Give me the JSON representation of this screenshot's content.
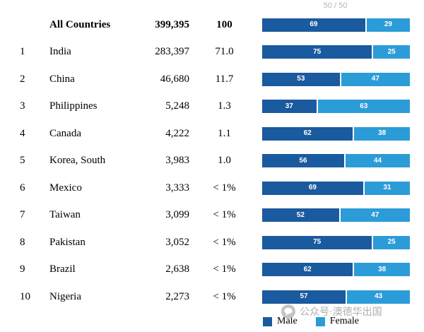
{
  "header_note": "50 / 50",
  "colors": {
    "male": "#1A5A9E",
    "female": "#2B9CD8"
  },
  "legend": [
    {
      "label": "Male",
      "color": "#1A5A9E"
    },
    {
      "label": "Female",
      "color": "#2B9CD8"
    }
  ],
  "watermark": "公众号·澳德华出国",
  "chart_data": {
    "type": "bar",
    "subtype": "horizontal-stacked-100",
    "axis_note": "50 / 50",
    "legend": [
      "Male",
      "Female"
    ],
    "columns": [
      "rank",
      "country",
      "count",
      "percent_of_total",
      "male_pct",
      "female_pct"
    ],
    "rows": [
      {
        "rank": "",
        "country": "All Countries",
        "count": "399,395",
        "percent": "100",
        "male": 69,
        "female": 29,
        "bold": true
      },
      {
        "rank": "1",
        "country": "India",
        "count": "283,397",
        "percent": "71.0",
        "male": 75,
        "female": 25
      },
      {
        "rank": "2",
        "country": "China",
        "count": "46,680",
        "percent": "11.7",
        "male": 53,
        "female": 47
      },
      {
        "rank": "3",
        "country": "Philippines",
        "count": "5,248",
        "percent": "1.3",
        "male": 37,
        "female": 63
      },
      {
        "rank": "4",
        "country": "Canada",
        "count": "4,222",
        "percent": "1.1",
        "male": 62,
        "female": 38
      },
      {
        "rank": "5",
        "country": "Korea, South",
        "count": "3,983",
        "percent": "1.0",
        "male": 56,
        "female": 44
      },
      {
        "rank": "6",
        "country": "Mexico",
        "count": "3,333",
        "percent": "< 1%",
        "male": 69,
        "female": 31
      },
      {
        "rank": "7",
        "country": "Taiwan",
        "count": "3,099",
        "percent": "< 1%",
        "male": 52,
        "female": 47
      },
      {
        "rank": "8",
        "country": "Pakistan",
        "count": "3,052",
        "percent": "< 1%",
        "male": 75,
        "female": 25
      },
      {
        "rank": "9",
        "country": "Brazil",
        "count": "2,638",
        "percent": "< 1%",
        "male": 62,
        "female": 38
      },
      {
        "rank": "10",
        "country": "Nigeria",
        "count": "2,273",
        "percent": "< 1%",
        "male": 57,
        "female": 43
      }
    ]
  }
}
